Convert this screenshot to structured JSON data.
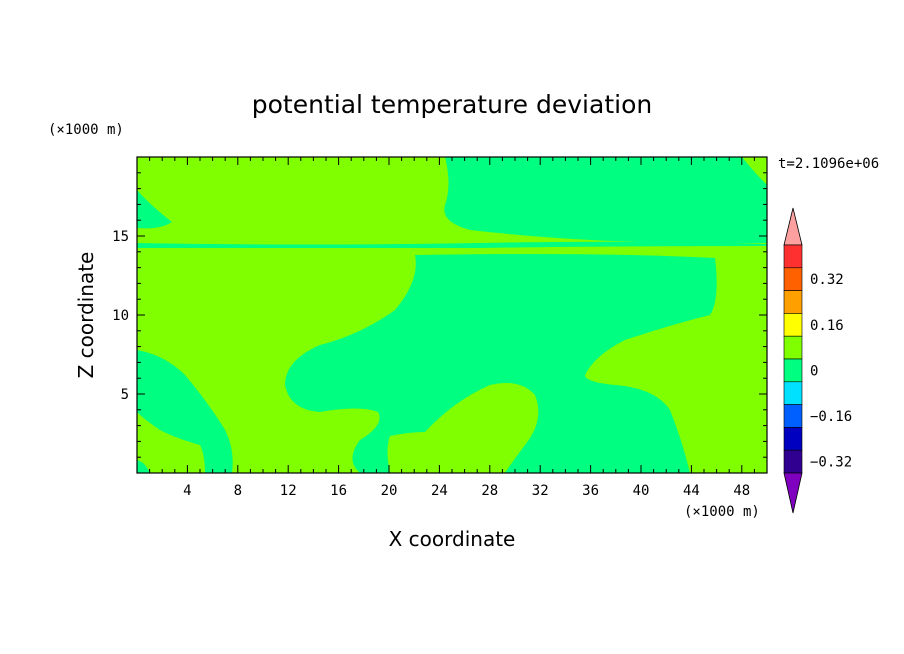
{
  "chart_data": {
    "type": "heatmap",
    "title": "potential temperature deviation",
    "xlabel": "X coordinate",
    "ylabel": "Z coordinate",
    "x_unit": "(×1000 m)",
    "y_unit": "(×1000 m)",
    "time_label": "t=2.1096e+06",
    "xlim": [
      0,
      50
    ],
    "ylim": [
      0,
      20
    ],
    "x_ticks": [
      4,
      8,
      12,
      16,
      20,
      24,
      28,
      32,
      36,
      40,
      44,
      48
    ],
    "y_ticks": [
      5,
      10,
      15
    ],
    "colorbar": {
      "levels": [
        -0.48,
        -0.4,
        -0.32,
        -0.24,
        -0.16,
        -0.08,
        0,
        0.08,
        0.16,
        0.24,
        0.32,
        0.4,
        0.48
      ],
      "tick_labels": [
        "0.32",
        "0.16",
        "0",
        "−0.16",
        "−0.32"
      ],
      "colors": [
        "#ffa0a0",
        "#ff3030",
        "#ff6000",
        "#ffa000",
        "#ffff00",
        "#80ff00",
        "#00ff80",
        "#00e0ff",
        "#0060ff",
        "#0000c0",
        "#300090",
        "#8000c0"
      ]
    },
    "regions": [
      {
        "level": "0 to 0.08",
        "color": "#80ff00"
      },
      {
        "level": "-0.08 to 0",
        "color": "#00ff80"
      }
    ]
  }
}
